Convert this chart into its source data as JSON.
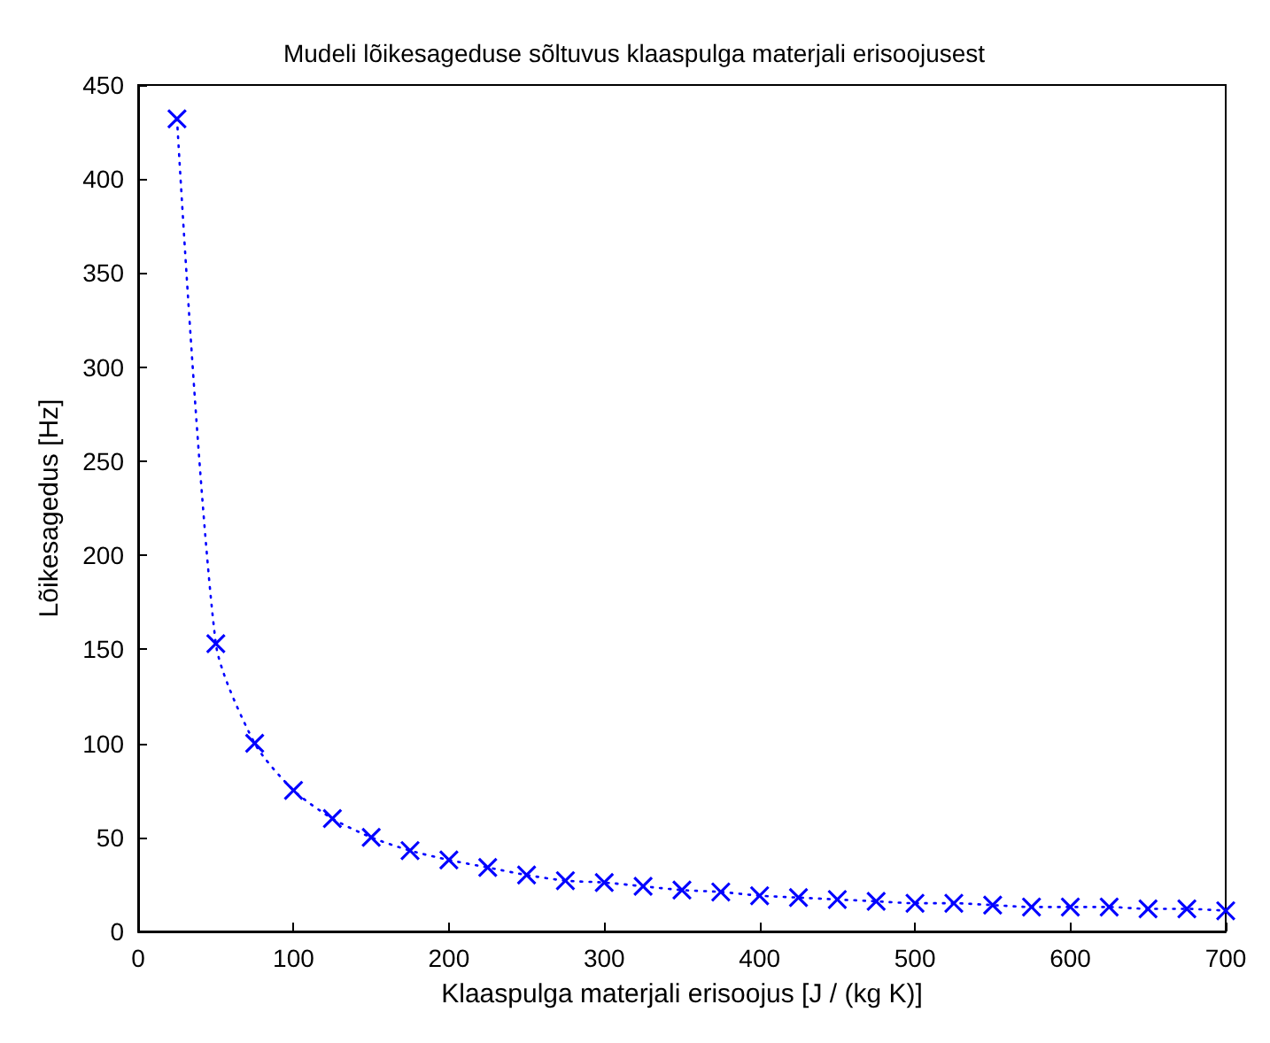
{
  "chart_data": {
    "type": "line",
    "title": "Mudeli lõikesageduse sõltuvus klaaspulga materjali erisoojusest",
    "xlabel": "Klaaspulga materjali erisoojus [J / (kg K)]",
    "ylabel": "Lõikesagedus [Hz]",
    "x": [
      25,
      50,
      75,
      100,
      125,
      150,
      175,
      200,
      225,
      250,
      275,
      300,
      325,
      350,
      375,
      400,
      425,
      450,
      475,
      500,
      525,
      550,
      575,
      600,
      625,
      650,
      675,
      700
    ],
    "series": [
      {
        "color": "#0000ff",
        "values": [
          432,
          153,
          100,
          75,
          60,
          50,
          43,
          38,
          34,
          30,
          27,
          26,
          24,
          22,
          21,
          19,
          18,
          17,
          16,
          15,
          15,
          14,
          13,
          13,
          13,
          12,
          12,
          11
        ]
      }
    ],
    "xlim": [
      0,
      700
    ],
    "xticks": [
      0,
      100,
      200,
      300,
      400,
      500,
      600,
      700
    ],
    "ylim": [
      0,
      450
    ],
    "yticks": [
      0,
      50,
      100,
      150,
      200,
      250,
      300,
      350,
      400,
      450
    ],
    "grid": false,
    "marker": "cross",
    "line_style": "dotted"
  }
}
